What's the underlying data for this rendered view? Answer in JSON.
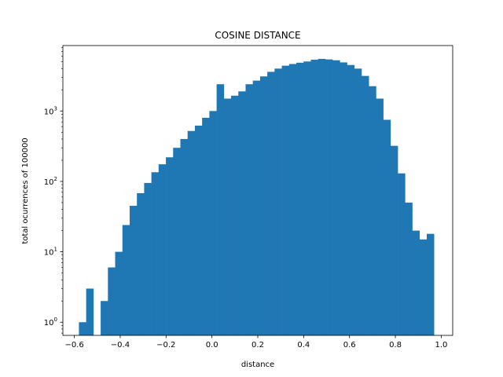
{
  "chart_data": {
    "type": "bar",
    "title": "COSINE DISTANCE",
    "xlabel": "distance",
    "ylabel": "total ocurrences of 100000",
    "yscale": "log",
    "xlim": [
      -0.65,
      1.05
    ],
    "ylim": [
      0.65,
      8500
    ],
    "grid": false,
    "legend": "none",
    "bar_color": "#1f77b4",
    "bins": {
      "start": -0.58,
      "width": 0.0316,
      "values": [
        1,
        3,
        0,
        2,
        6,
        10,
        24,
        45,
        68,
        95,
        135,
        175,
        220,
        300,
        400,
        520,
        620,
        800,
        1000,
        2400,
        1500,
        1650,
        1900,
        2400,
        2700,
        3100,
        3600,
        4000,
        4400,
        4650,
        4850,
        5050,
        5350,
        5500,
        5400,
        5250,
        4900,
        4500,
        4000,
        3150,
        2250,
        1500,
        750,
        320,
        130,
        50,
        20,
        15,
        18
      ]
    },
    "x_ticks": [
      {
        "value": -0.6,
        "label": "−0.6"
      },
      {
        "value": -0.4,
        "label": "−0.4"
      },
      {
        "value": -0.2,
        "label": "−0.2"
      },
      {
        "value": 0.0,
        "label": "0.0"
      },
      {
        "value": 0.2,
        "label": "0.2"
      },
      {
        "value": 0.4,
        "label": "0.4"
      },
      {
        "value": 0.6,
        "label": "0.6"
      },
      {
        "value": 0.8,
        "label": "0.8"
      },
      {
        "value": 1.0,
        "label": "1.0"
      }
    ],
    "y_ticks": [
      {
        "value": 1,
        "base": "10",
        "exp": "0"
      },
      {
        "value": 10,
        "base": "10",
        "exp": "1"
      },
      {
        "value": 100,
        "base": "10",
        "exp": "2"
      },
      {
        "value": 1000,
        "base": "10",
        "exp": "3"
      }
    ]
  }
}
